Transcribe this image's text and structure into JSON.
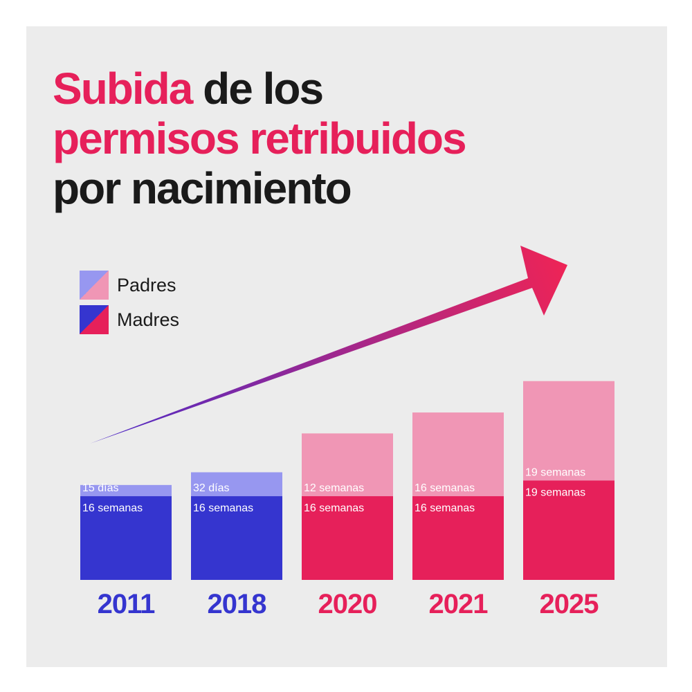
{
  "title": {
    "line1_highlight": "Subida",
    "line1_rest": " de los",
    "line2": "permisos retribuidos",
    "line3": "por nacimiento"
  },
  "colors": {
    "accent": "#e6205a",
    "dark": "#1a1a1a",
    "blue": "#3535cf",
    "light_blue": "#9797f0",
    "pink": "#e6205a",
    "light_pink": "#f096b5",
    "background": "#ececec"
  },
  "legend": [
    {
      "label": "Padres",
      "colors": [
        "#9797f0",
        "#f096b5"
      ]
    },
    {
      "label": "Madres",
      "colors": [
        "#3535cf",
        "#e6205a"
      ]
    }
  ],
  "chart_data": {
    "type": "bar",
    "stacked": true,
    "categories": [
      "2011",
      "2018",
      "2020",
      "2021",
      "2025"
    ],
    "series": [
      {
        "name": "Madres",
        "values": [
          16,
          16,
          16,
          16,
          19
        ],
        "labels": [
          "16 semanas",
          "16 semanas",
          "16 semanas",
          "16 semanas",
          "19 semanas"
        ]
      },
      {
        "name": "Padres",
        "values": [
          2.14,
          4.57,
          12,
          16,
          19
        ],
        "labels": [
          "15 días",
          "32 días",
          "12 semanas",
          "16 semanas",
          "19 semanas"
        ]
      }
    ],
    "unit": "semanas",
    "legend_position": "top-left",
    "grid": false,
    "annotation": "trend-arrow"
  }
}
